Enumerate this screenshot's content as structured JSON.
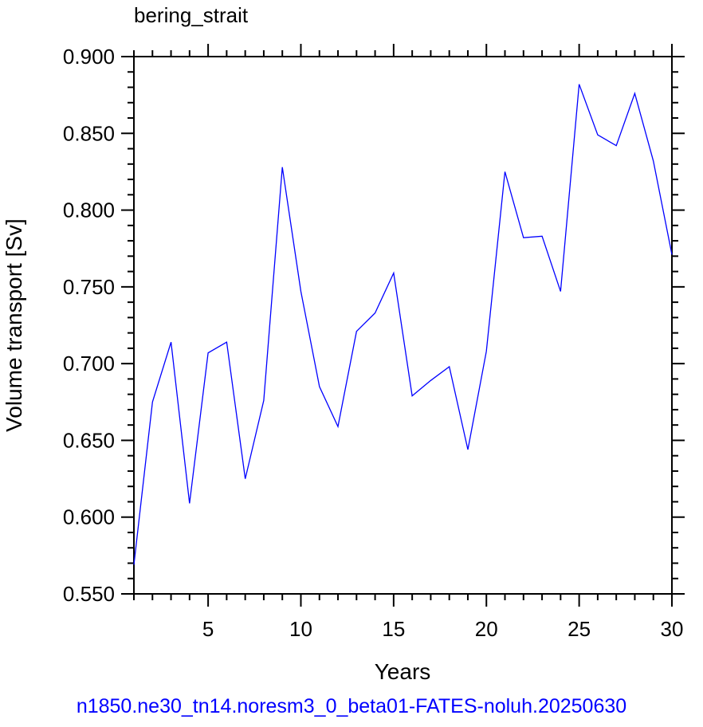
{
  "chart_data": {
    "type": "line",
    "title": "bering_strait",
    "xlabel": "Years",
    "ylabel": "Volume transport [Sv]",
    "xlim": [
      1,
      30
    ],
    "ylim": [
      0.55,
      0.9
    ],
    "x_ticks": [
      5,
      10,
      15,
      20,
      25,
      30
    ],
    "y_ticks": [
      "0.550",
      "0.600",
      "0.650",
      "0.700",
      "0.750",
      "0.800",
      "0.850",
      "0.900"
    ],
    "line_color": "#0000ff",
    "grid": false,
    "series": [
      {
        "x": [
          1,
          2,
          3,
          4,
          5,
          6,
          7,
          8,
          9,
          10,
          11,
          12,
          13,
          14,
          15,
          16,
          17,
          18,
          19,
          20,
          21,
          22,
          23,
          24,
          25,
          26,
          27,
          28,
          29,
          30
        ],
        "values": [
          0.569,
          0.675,
          0.714,
          0.609,
          0.707,
          0.714,
          0.625,
          0.676,
          0.828,
          0.747,
          0.685,
          0.659,
          0.721,
          0.733,
          0.759,
          0.679,
          0.689,
          0.698,
          0.644,
          0.708,
          0.825,
          0.782,
          0.783,
          0.747,
          0.882,
          0.849,
          0.842,
          0.876,
          0.832,
          0.771
        ]
      }
    ]
  },
  "footer": {
    "case_name": "n1850.ne30_tn14.noresm3_0_beta01-FATES-noluh.20250630",
    "color": "#0000ff"
  }
}
